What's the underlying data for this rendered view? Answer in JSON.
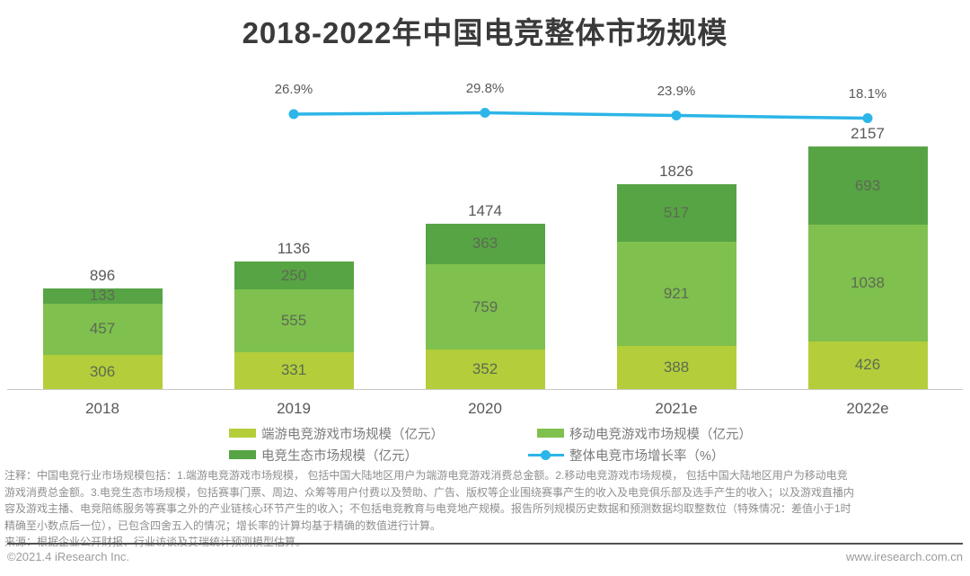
{
  "chart_data": {
    "type": "bar",
    "subtype": "stacked-bars-with-growth-line",
    "title": "2018-2022年中国电竞整体市场规模",
    "categories": [
      "2018",
      "2019",
      "2020",
      "2021e",
      "2022e"
    ],
    "series": [
      {
        "name": "端游电竞游戏市场规模（亿元）",
        "color": "#b3ce3a",
        "values": [
          306,
          331,
          352,
          388,
          426
        ]
      },
      {
        "name": "移动电竞游戏市场规模（亿元）",
        "color": "#7fc04f",
        "values": [
          457,
          555,
          759,
          921,
          1038
        ]
      },
      {
        "name": "电竞生态市场规模（亿元）",
        "color": "#57a445",
        "values": [
          133,
          250,
          363,
          517,
          693
        ]
      }
    ],
    "totals": [
      896,
      1136,
      1474,
      1826,
      2157
    ],
    "line_series": {
      "name": "整体电竞市场增长率（%）",
      "color": "#2cb5e8",
      "categories": [
        "2019",
        "2020",
        "2021e",
        "2022e"
      ],
      "values_pct": [
        26.9,
        29.8,
        23.9,
        18.1
      ],
      "value_labels": [
        "26.9%",
        "29.8%",
        "23.9%",
        "18.1%"
      ]
    },
    "legend_position": "bottom",
    "grid": false,
    "axes": {
      "y_axis_visible": false,
      "x_labels_visible": true
    }
  },
  "note": {
    "lines": [
      "注释：中国电竞行业市场规模包括：1.端游电竞游戏市场规模， 包括中国大陆地区用户为端游电竞游戏消费总金额。2.移动电竞游戏市场规模， 包括中国大陆地区用户为移动电竞",
      "游戏消费总金额。3.电竞生态市场规模，包括赛事门票、周边、众筹等用户付费以及赞助、广告、版权等企业围绕赛事产生的收入及电竞俱乐部及选手产生的收入；以及游戏直播内",
      "容及游戏主播、电竞陪练服务等赛事之外的产业链核心环节产生的收入；不包括电竞教育与电竞地产规模。报告所列规模历史数据和预测数据均取整数位（特殊情况：差值小于1时",
      "精确至小数点后一位），已包含四舍五入的情况；增长率的计算均基于精确的数值进行计算。"
    ],
    "source": "来源：根据企业公开财报、行业访谈及艾瑞统计预测模型估算。"
  },
  "footer": {
    "copyright": "©2021.4 iResearch Inc.",
    "website": "www.iresearch.com.cn"
  }
}
